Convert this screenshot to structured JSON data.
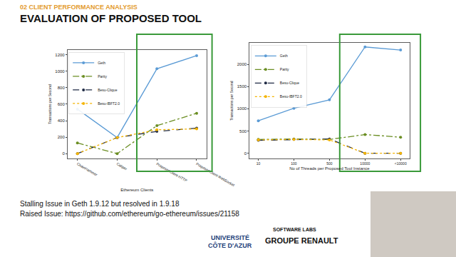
{
  "header": {
    "section": "02 CLIENT PERFORMANCE ANALYSIS",
    "title": "EVALUATION OF PROPOSED TOOL"
  },
  "chart_data": [
    {
      "type": "line",
      "x_label": "Ethereum Clients",
      "y_label": "Transactions per Second",
      "categories": [
        "ChainHammer",
        "Caliper",
        "ProposedClient-HTTP",
        "ProposedClient-WebSocket"
      ],
      "series": [
        {
          "name": "Geth",
          "color": "#5b9bd5",
          "line_style": "solid",
          "marker": "circle",
          "values": [
            540,
            195,
            1030,
            1190
          ]
        },
        {
          "name": "Parity",
          "color": "#6b8e23",
          "line_style": "dashdot",
          "marker": "circle",
          "values": [
            130,
            0,
            340,
            490
          ]
        },
        {
          "name": "Besu-Clique",
          "color": "#1f2a44",
          "line_style": "dashed",
          "marker": "circle",
          "values": [
            0,
            195,
            270,
            310
          ]
        },
        {
          "name": "Besu-IBFT2.0",
          "color": "#f4b400",
          "line_style": "dotted",
          "marker": "circle",
          "values": [
            0,
            195,
            290,
            300
          ]
        }
      ],
      "ylim": [
        -60,
        1260
      ],
      "yticks": [
        0,
        200,
        400,
        600,
        800,
        1000,
        1200
      ],
      "grid": false,
      "legend": "upper left"
    },
    {
      "type": "line",
      "x_label": "No of Threads per Proposed Tool Instance",
      "y_label": "Transactions per Second",
      "categories": [
        "10",
        "100",
        "500",
        "10000",
        "<10000"
      ],
      "series": [
        {
          "name": "Geth",
          "color": "#5b9bd5",
          "line_style": "solid",
          "marker": "circle",
          "values": [
            730,
            1010,
            1200,
            2390,
            2320
          ]
        },
        {
          "name": "Parity",
          "color": "#6b8e23",
          "line_style": "dashdot",
          "marker": "circle",
          "values": [
            310,
            320,
            310,
            420,
            360
          ]
        },
        {
          "name": "Besu-Clique",
          "color": "#1f2a44",
          "line_style": "dashed",
          "marker": "circle",
          "values": [
            290,
            310,
            320,
            0,
            0
          ]
        },
        {
          "name": "Besu-IBFT2.0",
          "color": "#f4b400",
          "line_style": "dotted",
          "marker": "circle",
          "values": [
            300,
            310,
            300,
            0,
            0
          ]
        }
      ],
      "ylim": [
        -120,
        2480
      ],
      "yticks": [
        0,
        500,
        1000,
        1500,
        2000
      ],
      "grid": false,
      "legend": "upper left"
    }
  ],
  "notes": [
    "Stalling Issue in Geth 1.9.12 but resolved in 1.9.18",
    "Raised Issue: https://github.com/ethereum/go-ethereum/issues/21158"
  ],
  "logos": [
    "UNIVERSITÉ",
    "CÔTE D'AZUR",
    "SOFTWARE LABS",
    "GROUPE RENAULT"
  ]
}
